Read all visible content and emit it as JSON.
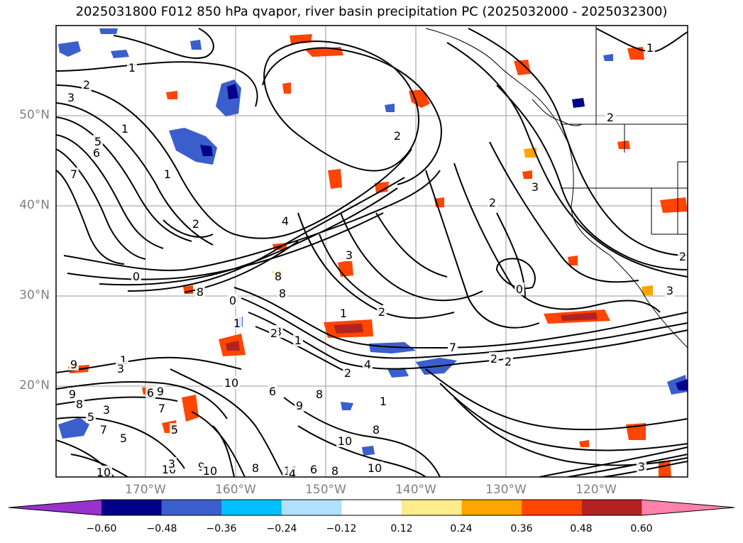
{
  "title": "2025031800 F012 850 hPa qvapor, river basin precipitation PC (2025032000 - 2025032300)",
  "lat_labels": [
    "50°N",
    "40°N",
    "30°N",
    "20°N"
  ],
  "lon_labels": [
    "170°W",
    "160°W",
    "150°W",
    "140°W",
    "130°W",
    "120°W"
  ],
  "colorbar": {
    "ticks": [
      "−0.60",
      "−0.48",
      "−0.36",
      "−0.24",
      "−0.12",
      "0.12",
      "0.24",
      "0.36",
      "0.48",
      "0.60"
    ],
    "colors": [
      "#9932cc",
      "#00008b",
      "#3a5fcd",
      "#00bfff",
      "#b0e2ff",
      "#ffffff",
      "#ffec8b",
      "#ffa500",
      "#ff4500",
      "#b22222",
      "#ff82ab"
    ]
  },
  "contour_labels": [
    "1",
    "2",
    "3",
    "1",
    "4",
    "5",
    "6",
    "7",
    "8",
    "9",
    "2",
    "1",
    "2",
    "4",
    "3",
    "0",
    "8",
    "2",
    "1",
    "2",
    "3",
    "0",
    "1",
    "2",
    "3",
    "7",
    "2",
    "2",
    "1",
    "3",
    "9",
    "6",
    "7",
    "9",
    "8",
    "10",
    "6",
    "8",
    "5",
    "3",
    "5",
    "7",
    "8",
    "9",
    "10",
    "11",
    "10",
    "10",
    "10",
    "10",
    "9",
    "8",
    "6",
    "4",
    "1",
    "7",
    "2",
    "3",
    "0",
    "3",
    "1",
    "2",
    "8",
    "5",
    "8",
    "1",
    "2",
    "3"
  ]
}
